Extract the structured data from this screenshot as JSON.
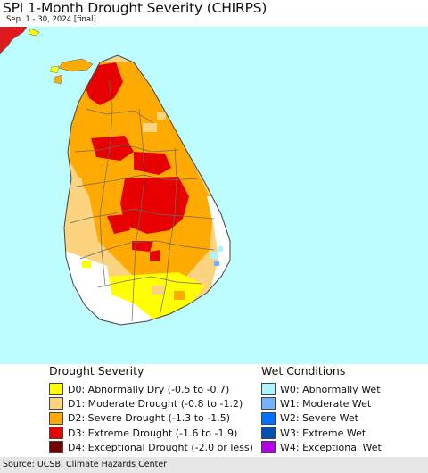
{
  "header": {
    "title": "SPI 1-Month Drought Severity (CHIRPS)",
    "subtitle": "Sep. 1 - 30, 2024 [final]"
  },
  "colors": {
    "ocean": "#bdfdff",
    "land_neutral": "#ffffff",
    "india": "#e31a1c",
    "borders": "#6b6b6b"
  },
  "legend": {
    "drought": {
      "title": "Drought Severity",
      "items": [
        {
          "label": "D0: Abnormally Dry (-0.5 to -0.7)",
          "color": "#ffff00"
        },
        {
          "label": "D1: Moderate Drought (-0.8 to -1.2)",
          "color": "#fcd37f"
        },
        {
          "label": "D2: Severe Drought (-1.3 to -1.5)",
          "color": "#ffaa00"
        },
        {
          "label": "D3: Extreme Drought (-1.6 to -1.9)",
          "color": "#e60000"
        },
        {
          "label": "D4: Exceptional Drought (-2.0 or less)",
          "color": "#730000"
        }
      ]
    },
    "wet": {
      "title": "Wet Conditions",
      "items": [
        {
          "label": "W0: Abnormally Wet",
          "color": "#aaf5ff"
        },
        {
          "label": "W1: Moderate Wet",
          "color": "#73b4ff"
        },
        {
          "label": "W2: Severe Wet",
          "color": "#0070ff"
        },
        {
          "label": "W3: Extreme Wet",
          "color": "#0050b4"
        },
        {
          "label": "W4: Exceptional Wet",
          "color": "#b400e6"
        }
      ]
    }
  },
  "footer": {
    "source": "Source: UCSB, Climate Hazards Center"
  }
}
